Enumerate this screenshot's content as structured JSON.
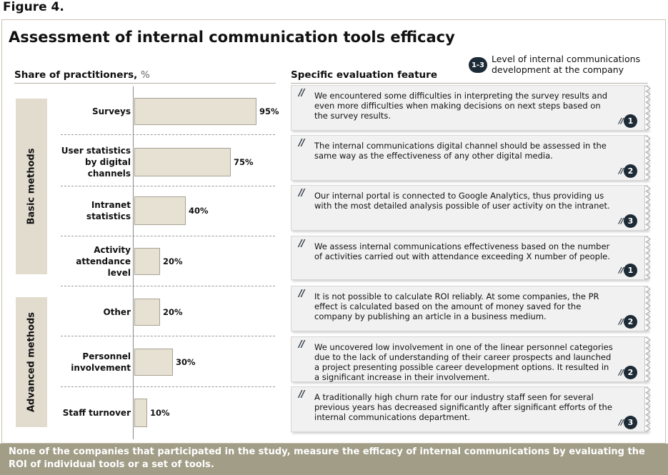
{
  "figure_label": "Figure 4.",
  "title": "Assessment of internal communication tools efficacy",
  "left_header": {
    "label": "Share of practitioners,",
    "unit": "%"
  },
  "right_header": "Specific evaluation  feature",
  "legend": {
    "badge": "1-3",
    "text": "Level of internal  communications development at the company"
  },
  "groups": [
    "Basic methods",
    "Advanced methods"
  ],
  "chart_data": {
    "type": "bar",
    "orientation": "horizontal",
    "categories": [
      "Surveys",
      "User statistics by digital channels",
      "Intranet statistics",
      "Activity attendance level",
      "Other",
      "Personnel involvement",
      "Staff turnover"
    ],
    "values": [
      95,
      75,
      40,
      20,
      20,
      30,
      10
    ],
    "value_labels": [
      "95%",
      "75%",
      "40%",
      "20%",
      "20%",
      "30%",
      "10%"
    ],
    "category_groups": [
      "Basic methods",
      "Basic methods",
      "Basic methods",
      "Basic methods",
      "Advanced methods",
      "Advanced methods",
      "Advanced methods"
    ],
    "xlim": [
      0,
      100
    ],
    "xlabel": "Share of practitioners, %",
    "bar_color": "#e6e1d2",
    "grid": false
  },
  "features": [
    {
      "text": "We encountered some difficulties in interpreting the survey results and even more difficulties when making decisions  on next steps based on the survey results.",
      "level": "1"
    },
    {
      "text": "The internal communications digital channel should be assessed in the same way as the effectiveness  of any other digital media.",
      "level": "2"
    },
    {
      "text": "Our internal portal is connected to Google Analytics, thus providing us with the most detailed analysis possible of user activity  on the intranet.",
      "level": "3"
    },
    {
      "text": "We assess internal communications  effectiveness  based on the number of activities  carried out with attendance exceeding X number of people.",
      "level": "1"
    },
    {
      "text": "It is not possible to calculate ROI reliably. At some companies, the PR effect is calculated based on the amount of money saved for the company by publishing an article in a business medium.",
      "level": "2"
    },
    {
      "text": "We uncovered low involvement  in one of the linear personnel categories due to the lack  of understanding of their career prospects and launched a project presenting possible career development options. It resulted in a significant  increase in their involvement.",
      "level": "2"
    },
    {
      "text": "A traditionally high churn rate for our industry staff seen for several previous years has decreased significantly after significant efforts of the internal communications department.",
      "level": "3"
    }
  ],
  "footer": "None of the companies that participated in the study, measure the  efficacy of internal communications  by evaluating the ROI of individual tools or a set of tools.",
  "colors": {
    "badge": "#1d2b37",
    "footer_bg": "#a19d87",
    "group_bg": "#e1dccd",
    "card_bg": "#f1f1f1"
  }
}
